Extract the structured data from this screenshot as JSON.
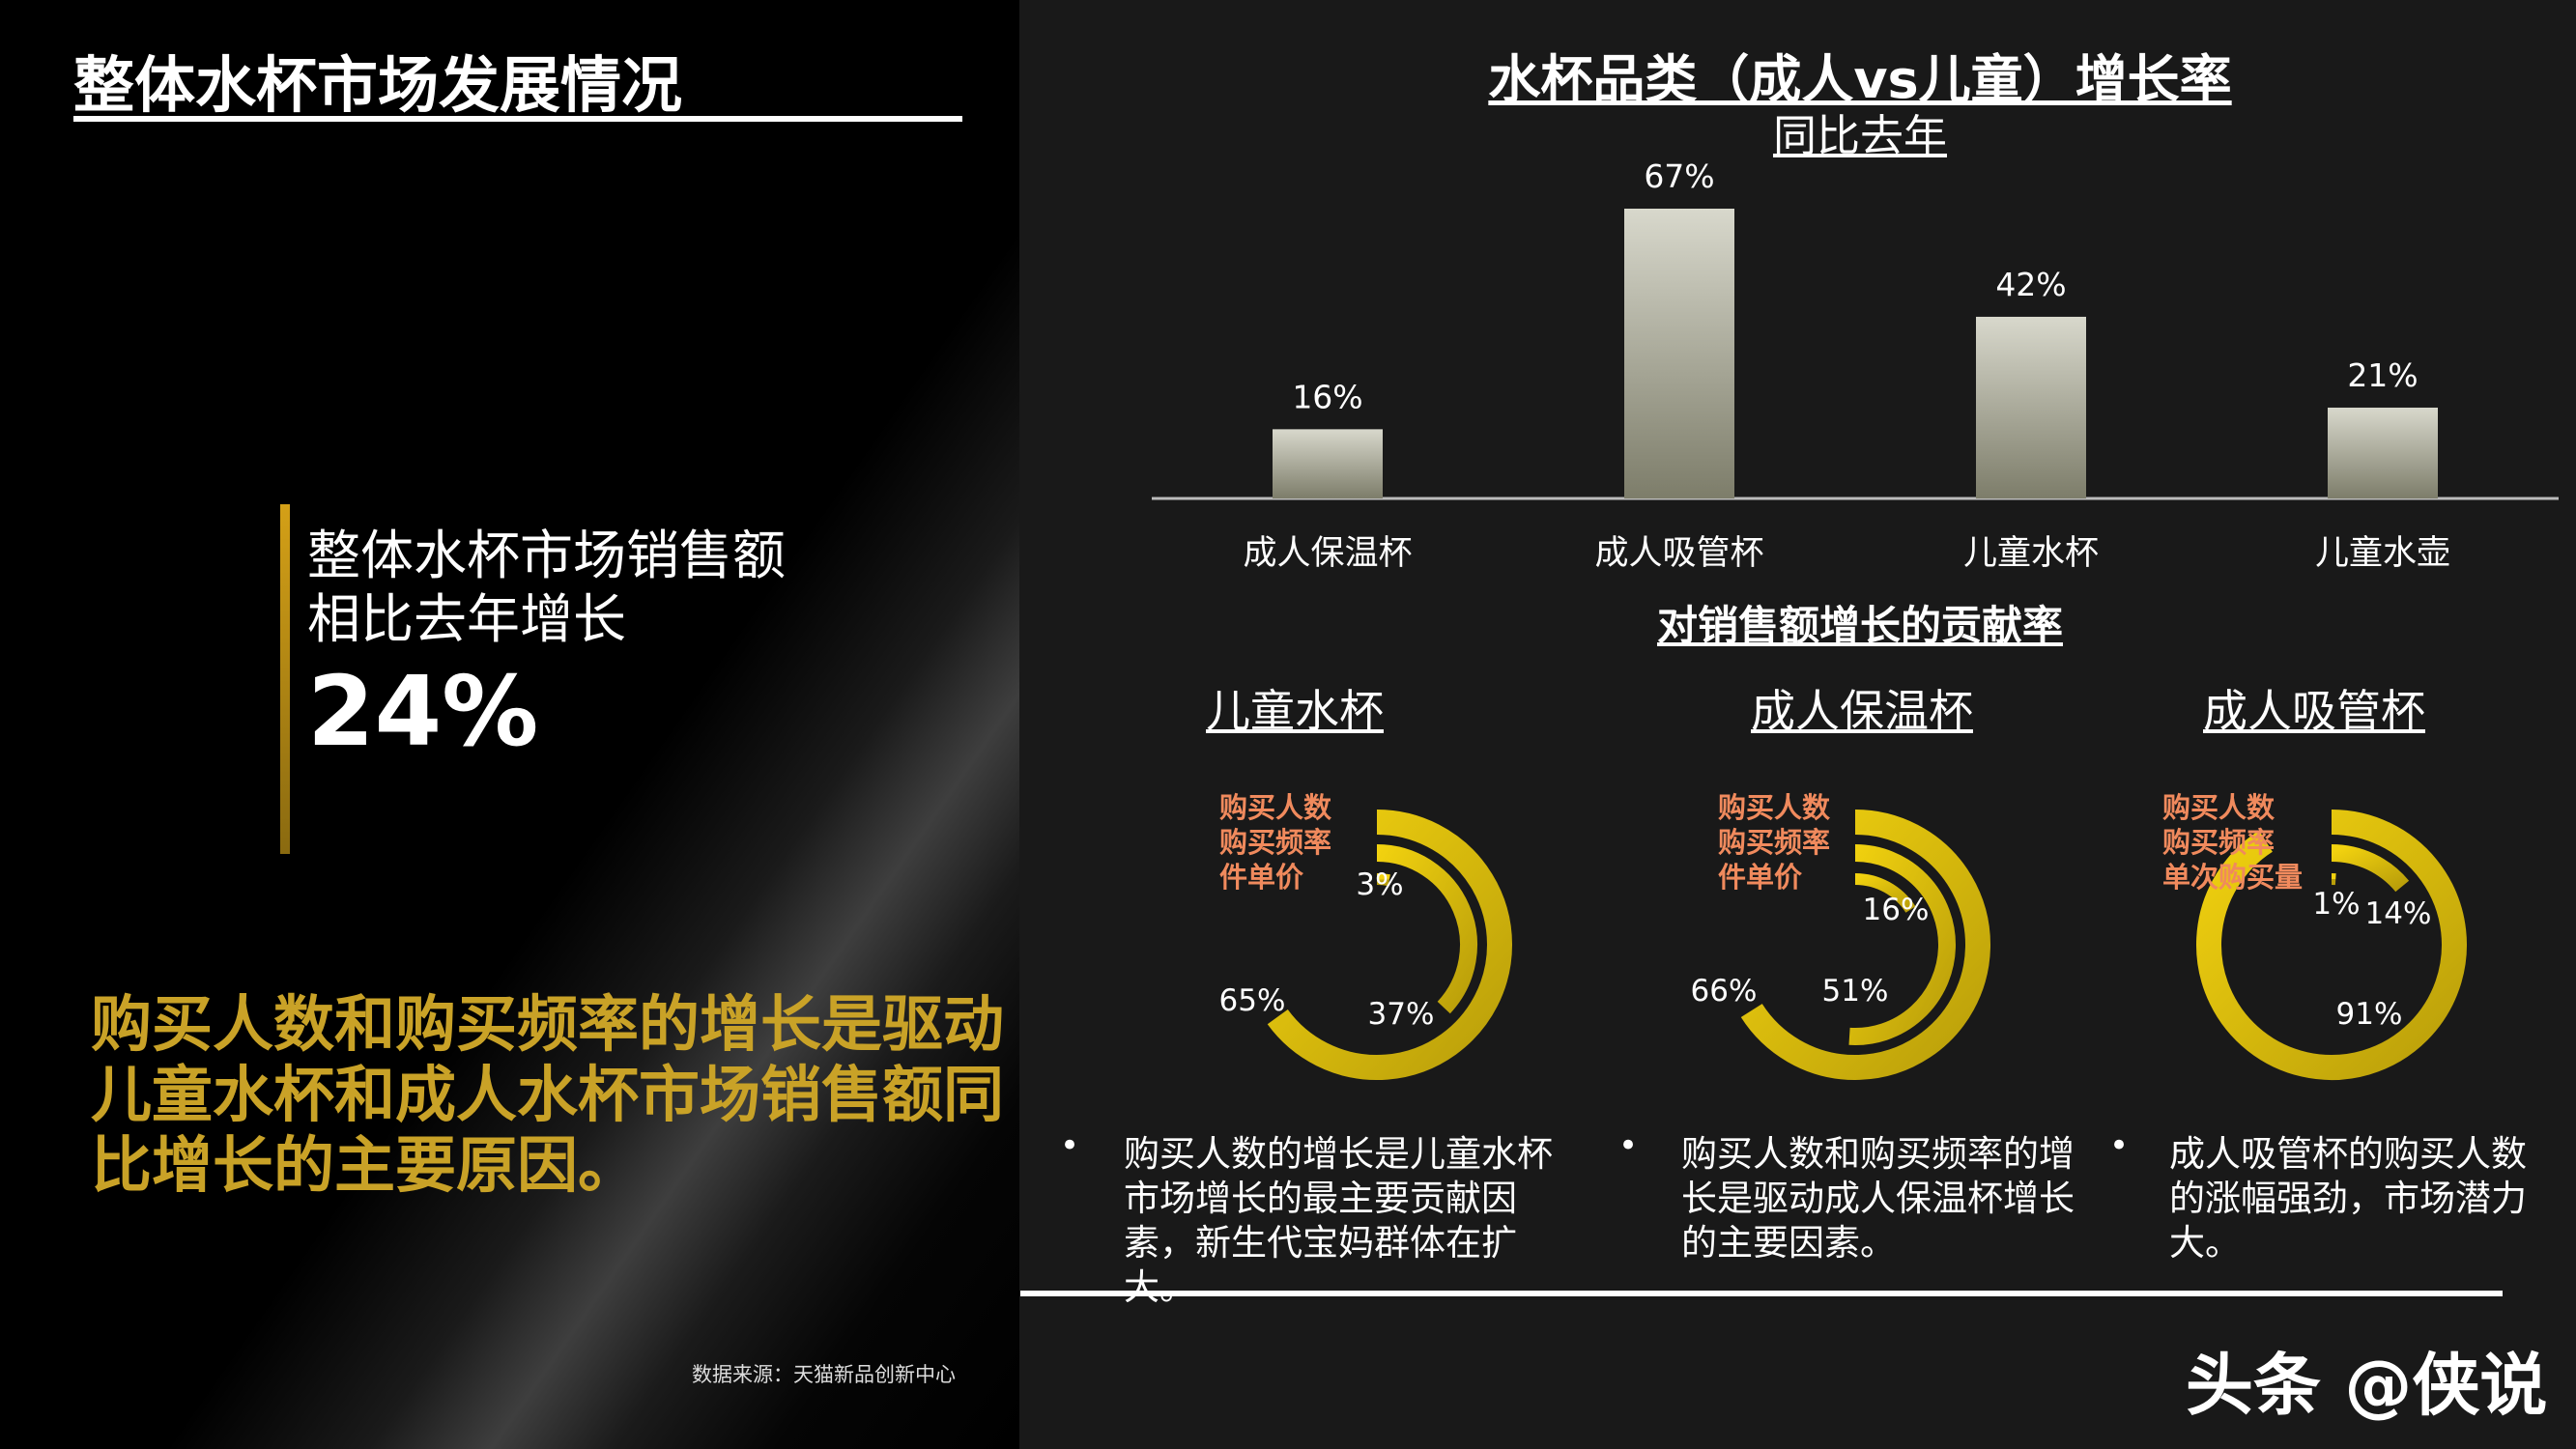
{
  "left": {
    "page_title": "整体水杯市场发展情况",
    "stat_text": "整体水杯市场销售额相比去年增长",
    "stat_value": "24%",
    "conclusion": "购买人数和购买频率的增长是驱动儿童水杯和成人水杯市场销售额同比增长的主要原因。",
    "source": "数据来源：天猫新品创新中心"
  },
  "colors": {
    "gold": "#c9a227",
    "donut_yellow": "#f2d20f",
    "donut_yellow_dark": "#b99e0a",
    "legend_text": "#f08a5d",
    "bar_light": "#d8d8cc",
    "bar_dark": "#7d7d6a"
  },
  "chart_data": [
    {
      "type": "bar",
      "title": "水杯品类（成人vs儿童）增长率",
      "subtitle": "同比去年",
      "categories": [
        "成人保温杯",
        "成人吸管杯",
        "儿童水杯",
        "儿童水壶"
      ],
      "values": [
        16,
        67,
        42,
        21
      ],
      "data_labels": [
        "16%",
        "67%",
        "42%",
        "21%"
      ],
      "ylim": [
        0,
        67
      ],
      "grid": false
    },
    {
      "type": "pie",
      "section_title": "对销售额增长的贡献率",
      "donuts": [
        {
          "title": "儿童水杯",
          "legend": [
            "购买人数",
            "购买频率",
            "件单价"
          ],
          "values": [
            65,
            37,
            3
          ],
          "labels": [
            "65%",
            "37%",
            "3%"
          ]
        },
        {
          "title": "成人保温杯",
          "legend": [
            "购买人数",
            "购买频率",
            "件单价"
          ],
          "values": [
            66,
            51,
            16
          ],
          "labels": [
            "66%",
            "51%",
            "16%"
          ]
        },
        {
          "title": "成人吸管杯",
          "legend": [
            "购买人数",
            "购买频率",
            "单次购买量"
          ],
          "values": [
            91,
            14,
            1
          ],
          "labels": [
            "91%",
            "14%",
            "1%"
          ]
        }
      ]
    }
  ],
  "bullets": [
    "购买人数的增长是儿童水杯市场增长的最主要贡献因素，新生代宝妈群体在扩大。",
    "购买人数和购买频率的增长是驱动成人保温杯增长的主要因素。",
    "成人吸管杯的购买人数的涨幅强劲，市场潜力大。"
  ],
  "bullet_marker": "•",
  "watermark": "头条 @侠说"
}
